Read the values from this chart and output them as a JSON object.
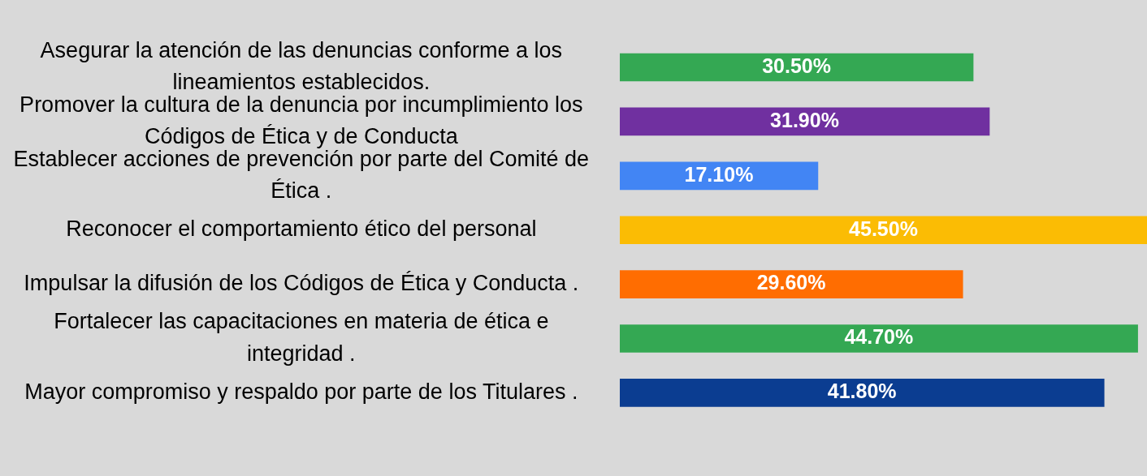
{
  "chart_data": {
    "type": "bar",
    "orientation": "horizontal",
    "categories": [
      "Asegurar la atención de las denuncias conforme a los lineamientos establecidos.",
      "Promover la cultura de la denuncia por incumplimiento los Códigos de Ética y de Conducta",
      "Establecer acciones de prevención por parte del Comité de Ética .",
      "Reconocer el comportamiento ético del personal",
      "Impulsar la difusión de los Códigos de Ética y Conducta .",
      "Fortalecer las capacitaciones en materia de ética e integridad .",
      "Mayor compromiso y respaldo por parte de los Titulares ."
    ],
    "values": [
      30.5,
      31.9,
      17.1,
      45.5,
      29.6,
      44.7,
      41.8
    ],
    "colors": [
      "#34a853",
      "#7030a0",
      "#4285f4",
      "#fbbc04",
      "#ff6d01",
      "#34a853",
      "#0b3d91"
    ],
    "value_labels": [
      "30.50%",
      "31.90%",
      "17.10%",
      "45.50%",
      "29.60%",
      "44.70%",
      "41.80%"
    ],
    "legend": false
  }
}
